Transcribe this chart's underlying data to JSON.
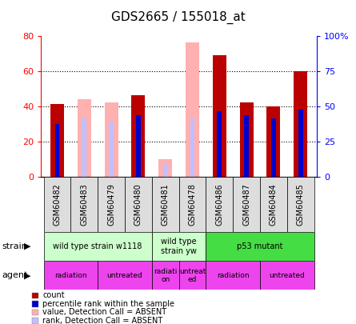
{
  "title": "GDS2665 / 155018_at",
  "samples": [
    "GSM60482",
    "GSM60483",
    "GSM60479",
    "GSM60480",
    "GSM60481",
    "GSM60478",
    "GSM60486",
    "GSM60487",
    "GSM60484",
    "GSM60485"
  ],
  "count": [
    41,
    0,
    0,
    46,
    0,
    0,
    69,
    42,
    40,
    60
  ],
  "rank": [
    30,
    0,
    0,
    35,
    0,
    0,
    37,
    35,
    33,
    38
  ],
  "absent_value": [
    0,
    44,
    42,
    0,
    10,
    76,
    0,
    0,
    0,
    0
  ],
  "absent_rank": [
    0,
    33,
    31,
    0,
    7,
    33,
    0,
    0,
    0,
    0
  ],
  "ylim_left": [
    0,
    80
  ],
  "ylim_right": [
    0,
    100
  ],
  "yticks_left": [
    0,
    20,
    40,
    60,
    80
  ],
  "yticks_right": [
    0,
    25,
    50,
    75,
    100
  ],
  "ytick_labels_right": [
    "0",
    "25",
    "50",
    "75",
    "100%"
  ],
  "color_count": "#bb0000",
  "color_rank": "#0000cc",
  "color_absent_value": "#ffb0b0",
  "color_absent_rank": "#c0c0ff",
  "strain_groups": [
    {
      "label": "wild type strain w1118",
      "start": 0,
      "end": 4,
      "color": "#ccffcc"
    },
    {
      "label": "wild type\nstrain yw",
      "start": 4,
      "end": 6,
      "color": "#ccffcc"
    },
    {
      "label": "p53 mutant",
      "start": 6,
      "end": 10,
      "color": "#44dd44"
    }
  ],
  "agent_groups": [
    {
      "label": "radiation",
      "start": 0,
      "end": 2,
      "color": "#ee44ee"
    },
    {
      "label": "untreated",
      "start": 2,
      "end": 4,
      "color": "#ee44ee"
    },
    {
      "label": "radiati-\non",
      "start": 4,
      "end": 5,
      "color": "#ee44ee"
    },
    {
      "label": "untreat-\ned",
      "start": 5,
      "end": 6,
      "color": "#ee44ee"
    },
    {
      "label": "radiation",
      "start": 6,
      "end": 8,
      "color": "#ee44ee"
    },
    {
      "label": "untreated",
      "start": 8,
      "end": 10,
      "color": "#ee44ee"
    }
  ],
  "legend_items": [
    {
      "label": "count",
      "color": "#bb0000"
    },
    {
      "label": "percentile rank within the sample",
      "color": "#0000cc"
    },
    {
      "label": "value, Detection Call = ABSENT",
      "color": "#ffb0b0"
    },
    {
      "label": "rank, Detection Call = ABSENT",
      "color": "#c0c0ff"
    }
  ],
  "bar_width": 0.5
}
